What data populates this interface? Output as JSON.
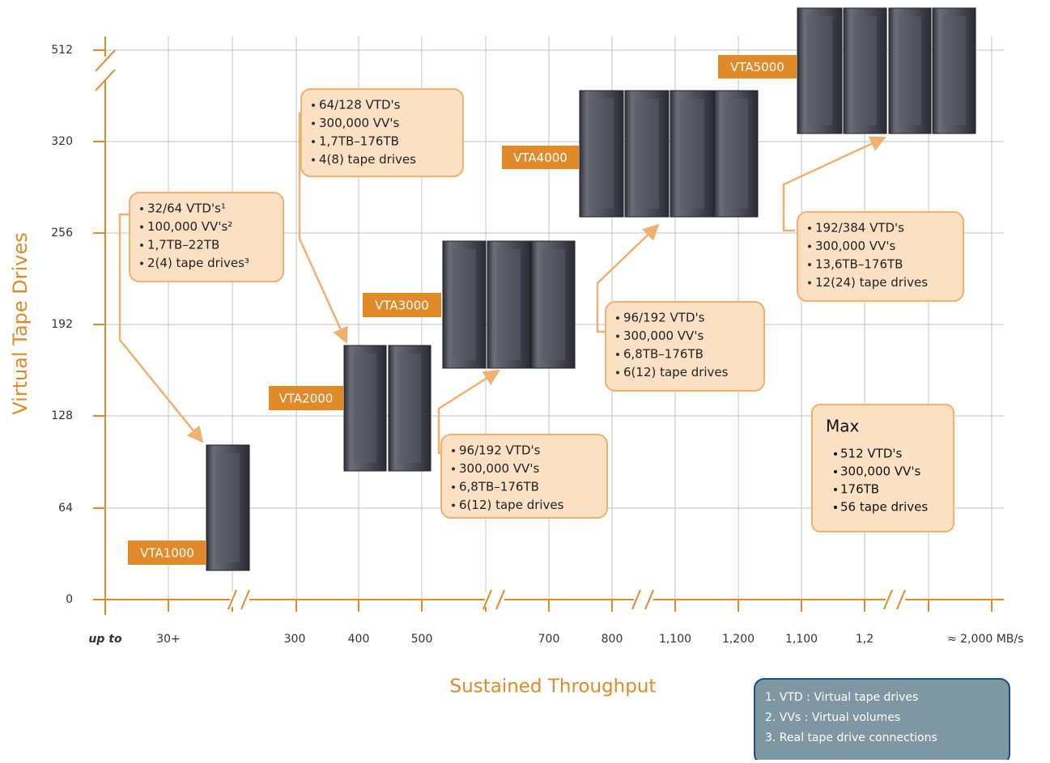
{
  "y_axis": {
    "title": "Virtual Tape Drives",
    "ticks": [
      "0",
      "64",
      "128",
      "192",
      "256",
      "320",
      "512"
    ]
  },
  "x_axis": {
    "title": "Sustained Throughput",
    "ticks": [
      "up to",
      "30+",
      "300",
      "400",
      "500",
      "700",
      "800",
      "1,100",
      "1,200",
      "1,100",
      "1,2",
      "≈ 2,000 MB/s"
    ]
  },
  "models": [
    {
      "label": "VTA1000"
    },
    {
      "label": "VTA2000"
    },
    {
      "label": "VTA3000"
    },
    {
      "label": "VTA4000"
    },
    {
      "label": "VTA5000"
    }
  ],
  "spec_boxes": [
    {
      "lines": [
        "32/64 VTD's¹",
        "100,000 VV's²",
        "1,7TB–22TB",
        "2(4) tape drives³"
      ]
    },
    {
      "lines": [
        "64/128 VTD's",
        "300,000 VV's",
        "1,7TB–176TB",
        "4(8) tape drives"
      ]
    },
    {
      "lines": [
        "96/192 VTD's",
        "300,000 VV's",
        "6,8TB–176TB",
        "6(12) tape drives"
      ]
    },
    {
      "lines": [
        "96/192 VTD's",
        "300,000 VV's",
        "6,8TB–176TB",
        "6(12) tape drives"
      ]
    },
    {
      "lines": [
        "192/384 VTD's",
        "300,000 VV's",
        "13,6TB–176TB",
        "12(24) tape drives"
      ]
    }
  ],
  "max_box": {
    "title": "Max",
    "lines": [
      "512 VTD's",
      "300,000 VV's",
      "176TB",
      "56 tape drives"
    ]
  },
  "footnotes": [
    "1. VTD : Virtual tape drives",
    "2. VVs : Virtual volumes",
    "3. Real tape drive connections"
  ]
}
